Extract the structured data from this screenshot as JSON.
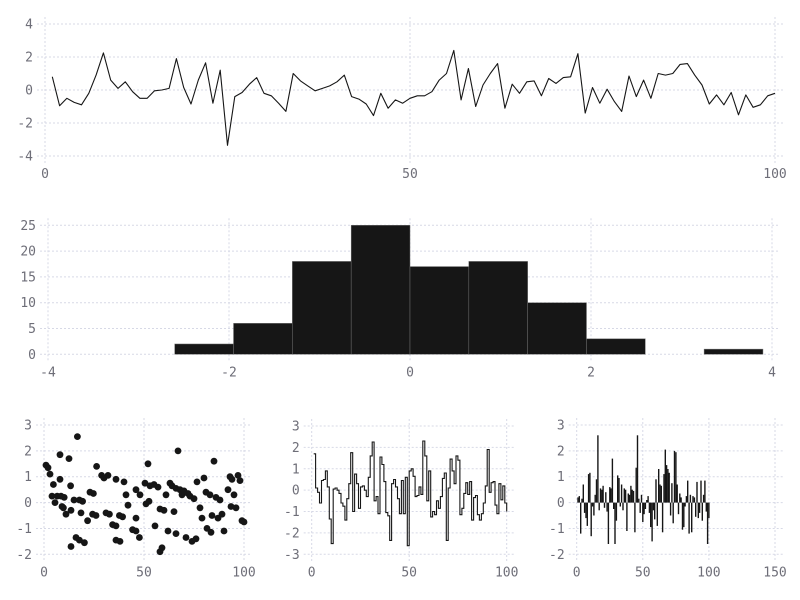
{
  "figure": {
    "background": "#ffffff",
    "grid_color": "#d7d9e6",
    "tick_label_color": "#6e6e78",
    "series_color": "#161616"
  },
  "chart_data": [
    {
      "name": "noise-line-plot",
      "type": "line",
      "title": "",
      "xlabel": "",
      "ylabel": "",
      "grid": true,
      "legend": "none",
      "xlim": [
        0,
        100
      ],
      "ylim": [
        -4,
        4
      ],
      "xticks": [
        0,
        50,
        100
      ],
      "yticks": [
        -4,
        -2,
        0,
        2,
        4
      ],
      "x_start": 1,
      "values": [
        0.8,
        -0.95,
        -0.5,
        -0.75,
        -0.9,
        -0.2,
        0.9,
        2.25,
        0.6,
        0.1,
        0.5,
        -0.1,
        -0.5,
        -0.5,
        -0.05,
        0.0,
        0.1,
        1.9,
        0.15,
        -0.85,
        0.6,
        1.65,
        -0.8,
        1.2,
        -3.35,
        -0.4,
        -0.15,
        0.35,
        0.75,
        -0.2,
        -0.35,
        -0.8,
        -1.3,
        1.0,
        0.55,
        0.25,
        -0.05,
        0.1,
        0.25,
        0.5,
        0.9,
        -0.4,
        -0.55,
        -0.85,
        -1.55,
        -0.2,
        -1.1,
        -0.6,
        -0.8,
        -0.5,
        -0.35,
        -0.35,
        -0.1,
        0.6,
        1.0,
        2.4,
        -0.6,
        1.3,
        -1.0,
        0.3,
        1.0,
        1.6,
        -1.1,
        0.35,
        -0.2,
        0.5,
        0.55,
        -0.35,
        0.7,
        0.4,
        0.75,
        0.8,
        2.2,
        -1.4,
        0.15,
        -0.8,
        0.05,
        -0.7,
        -1.3,
        0.85,
        -0.4,
        0.6,
        -0.5,
        1.0,
        0.9,
        1.0,
        1.55,
        1.6,
        0.9,
        0.3,
        -0.85,
        -0.3,
        -0.9,
        -0.15,
        -1.5,
        -0.3,
        -1.05,
        -0.9,
        -0.35,
        -0.2
      ]
    },
    {
      "name": "histogram",
      "type": "histogram",
      "title": "",
      "xlabel": "",
      "ylabel": "",
      "grid": true,
      "legend": "none",
      "xlim": [
        -4,
        4
      ],
      "ylim": [
        0,
        25
      ],
      "xticks": [
        -4,
        -2,
        0,
        2,
        4
      ],
      "yticks": [
        0,
        5,
        10,
        15,
        20,
        25
      ],
      "bin_edges": [
        -2.6,
        -1.95,
        -1.3,
        -0.65,
        0,
        0.65,
        1.3,
        1.95,
        2.6,
        3.25,
        3.9
      ],
      "counts": [
        2,
        6,
        18,
        25,
        17,
        18,
        10,
        3,
        0,
        1
      ],
      "total_samples": 100
    },
    {
      "name": "scatter-plot",
      "type": "scatter",
      "title": "",
      "xlabel": "",
      "ylabel": "",
      "grid": true,
      "legend": "none",
      "xlim": [
        0,
        100
      ],
      "ylim": [
        -2,
        3
      ],
      "xticks": [
        0,
        50,
        100
      ],
      "yticks": [
        -2,
        -1,
        0,
        1,
        2,
        3
      ],
      "points": [
        [
          1,
          1.45
        ],
        [
          2,
          1.35
        ],
        [
          3,
          1.1
        ],
        [
          4,
          0.25
        ],
        [
          4.7,
          0.7
        ],
        [
          5.5,
          0
        ],
        [
          6.6,
          0.25
        ],
        [
          8,
          1.85
        ],
        [
          8,
          0.9
        ],
        [
          8.5,
          0.25
        ],
        [
          9,
          -0.15
        ],
        [
          9.7,
          -0.2
        ],
        [
          10.1,
          0.2
        ],
        [
          11,
          -0.45
        ],
        [
          12.5,
          1.7
        ],
        [
          13.3,
          0.65
        ],
        [
          13.5,
          -0.3
        ],
        [
          13.5,
          -1.7
        ],
        [
          15,
          0.1
        ],
        [
          16,
          -1.35
        ],
        [
          16.7,
          2.55
        ],
        [
          17.7,
          0.1
        ],
        [
          17.7,
          -1.45
        ],
        [
          18.5,
          -0.4
        ],
        [
          19.3,
          0.05
        ],
        [
          20.2,
          -1.55
        ],
        [
          21.8,
          -0.7
        ],
        [
          23,
          0.4
        ],
        [
          24.3,
          -0.45
        ],
        [
          24.7,
          0.35
        ],
        [
          26,
          -0.5
        ],
        [
          26.3,
          1.4
        ],
        [
          28.8,
          1.05
        ],
        [
          30,
          0.95
        ],
        [
          31,
          -0.4
        ],
        [
          32,
          1.05
        ],
        [
          32.7,
          -0.45
        ],
        [
          34.3,
          -0.85
        ],
        [
          36,
          0.9
        ],
        [
          36,
          -0.9
        ],
        [
          36,
          -1.45
        ],
        [
          37.7,
          -0.5
        ],
        [
          38,
          -1.5
        ],
        [
          39.3,
          -0.55
        ],
        [
          40,
          0.8
        ],
        [
          41,
          0.3
        ],
        [
          42,
          -0.1
        ],
        [
          44.3,
          -1.05
        ],
        [
          46,
          0.5
        ],
        [
          46,
          -0.6
        ],
        [
          46,
          -1.1
        ],
        [
          47.7,
          -1.35
        ],
        [
          48,
          0.3
        ],
        [
          50.5,
          0.75
        ],
        [
          51,
          -0.05
        ],
        [
          52,
          1.5
        ],
        [
          52.5,
          0.05
        ],
        [
          53,
          0.65
        ],
        [
          55,
          0.7
        ],
        [
          55.5,
          -0.9
        ],
        [
          57,
          0.6
        ],
        [
          58,
          -0.25
        ],
        [
          58,
          -1.9
        ],
        [
          59,
          -1.75
        ],
        [
          60,
          -0.3
        ],
        [
          61,
          0.3
        ],
        [
          62,
          -1.1
        ],
        [
          63,
          0.75
        ],
        [
          64,
          0.65
        ],
        [
          65,
          -0.35
        ],
        [
          66,
          0.55
        ],
        [
          66,
          -1.2
        ],
        [
          67,
          2
        ],
        [
          68,
          0.5
        ],
        [
          69,
          0.3
        ],
        [
          70,
          0.45
        ],
        [
          71,
          -1.35
        ],
        [
          72,
          0.35
        ],
        [
          73,
          0.25
        ],
        [
          74,
          -1.5
        ],
        [
          75,
          0.15
        ],
        [
          76,
          -1.4
        ],
        [
          76.5,
          0.8
        ],
        [
          78,
          -0.2
        ],
        [
          79,
          -0.6
        ],
        [
          80,
          0.95
        ],
        [
          81,
          0.4
        ],
        [
          81.5,
          -1
        ],
        [
          83,
          0.3
        ],
        [
          83.5,
          -1.15
        ],
        [
          84,
          -0.5
        ],
        [
          85,
          1.6
        ],
        [
          86,
          0.2
        ],
        [
          87,
          -0.6
        ],
        [
          88,
          0.1
        ],
        [
          89,
          -0.45
        ],
        [
          90,
          -1.1
        ],
        [
          92,
          0.5
        ],
        [
          93,
          1
        ],
        [
          93.5,
          -0.15
        ],
        [
          94,
          0.9
        ],
        [
          95,
          0.3
        ],
        [
          96,
          -0.2
        ],
        [
          97,
          1.05
        ],
        [
          98,
          0.85
        ],
        [
          99,
          -0.7
        ],
        [
          100,
          -0.75
        ]
      ]
    },
    {
      "name": "step-plot",
      "type": "step",
      "title": "",
      "xlabel": "",
      "ylabel": "",
      "grid": true,
      "legend": "none",
      "xlim": [
        0,
        100
      ],
      "ylim": [
        -3,
        3
      ],
      "xticks": [
        0,
        50,
        100
      ],
      "yticks": [
        -3,
        -2,
        -1,
        0,
        1,
        2,
        3
      ],
      "x_start": 1,
      "values": [
        1.7,
        0.1,
        -0.1,
        -0.6,
        0.45,
        0.5,
        0.9,
        0.15,
        -1.35,
        -2.5,
        0.05,
        0.1,
        0.0,
        -0.15,
        -0.6,
        -0.75,
        -1.4,
        -0.4,
        0.3,
        1.75,
        -1.0,
        0.75,
        0.3,
        -0.85,
        0.15,
        0.2,
        0.0,
        -0.3,
        0.6,
        1.6,
        2.25,
        -0.5,
        -0.3,
        -1.1,
        1.55,
        1.2,
        0.4,
        -1.05,
        -1.2,
        -2.35,
        0.3,
        0.5,
        0.15,
        -0.4,
        -1.1,
        0.45,
        -1.1,
        0.6,
        -2.6,
        0.9,
        1.0,
        0.65,
        -0.3,
        -0.25,
        0.15,
        -0.2,
        2.3,
        1.6,
        -0.5,
        0.9,
        -1.25,
        -1.0,
        -1.15,
        -0.5,
        -0.85,
        -0.3,
        0.55,
        0.8,
        -2.35,
        0.1,
        1.45,
        0.9,
        0.3,
        1.6,
        1.4,
        -1.15,
        -0.85,
        -0.15,
        0.35,
        -0.2,
        0.4,
        -1.4,
        -0.35,
        -0.25,
        -1.15,
        -1.4,
        -1.1,
        -0.6,
        0.2,
        1.9,
        -0.1,
        0.35,
        0.4,
        -0.7,
        -1.1,
        0.3,
        -0.45,
        0.2,
        -0.6,
        -1.0
      ]
    },
    {
      "name": "stem-bar-plot",
      "type": "stem",
      "title": "",
      "xlabel": "",
      "ylabel": "",
      "grid": true,
      "legend": "none",
      "xlim": [
        0,
        150
      ],
      "ylim": [
        -2,
        3
      ],
      "xticks": [
        0,
        50,
        100,
        150
      ],
      "yticks": [
        -2,
        -1,
        0,
        1,
        2,
        3
      ],
      "x_start": 1,
      "values": [
        0.2,
        0.25,
        -1.2,
        0.15,
        0.7,
        -0.4,
        -0.6,
        -0.9,
        1.1,
        1.15,
        -1.3,
        -0.15,
        -0.5,
        0.3,
        0.9,
        2.6,
        -0.3,
        0.55,
        0.5,
        0.65,
        -0.2,
        0.4,
        -0.35,
        -1.6,
        0.6,
        0.55,
        1.7,
        -0.25,
        -1.6,
        -0.7,
        1.05,
        0.95,
        -0.15,
        0.7,
        -0.3,
        0.55,
        0.5,
        -1.1,
        0.35,
        0.3,
        0.65,
        0.5,
        0.45,
        -1.15,
        1.35,
        2.6,
        0.15,
        -0.4,
        0.3,
        -0.75,
        -0.45,
        -0.25,
        0.1,
        0.25,
        -0.4,
        -0.95,
        -1.5,
        -0.3,
        -0.65,
        0.9,
        -0.9,
        1.3,
        0.7,
        0.65,
        -1.15,
        1.1,
        2.05,
        1.45,
        1.3,
        1.15,
        -0.5,
        0.75,
        -0.8,
        2.0,
        1.95,
        0.7,
        -0.45,
        0.35,
        0.2,
        -1.05,
        -0.95,
        -0.15,
        0.25,
        0.85,
        -1.2,
        0.3,
        -1.15,
        0.25,
        0.2,
        -0.55,
        0.8,
        -0.6,
        -0.4,
        0.85,
        -0.7,
        0.3,
        0.85,
        -0.35,
        -1.6,
        -0.6
      ]
    }
  ]
}
